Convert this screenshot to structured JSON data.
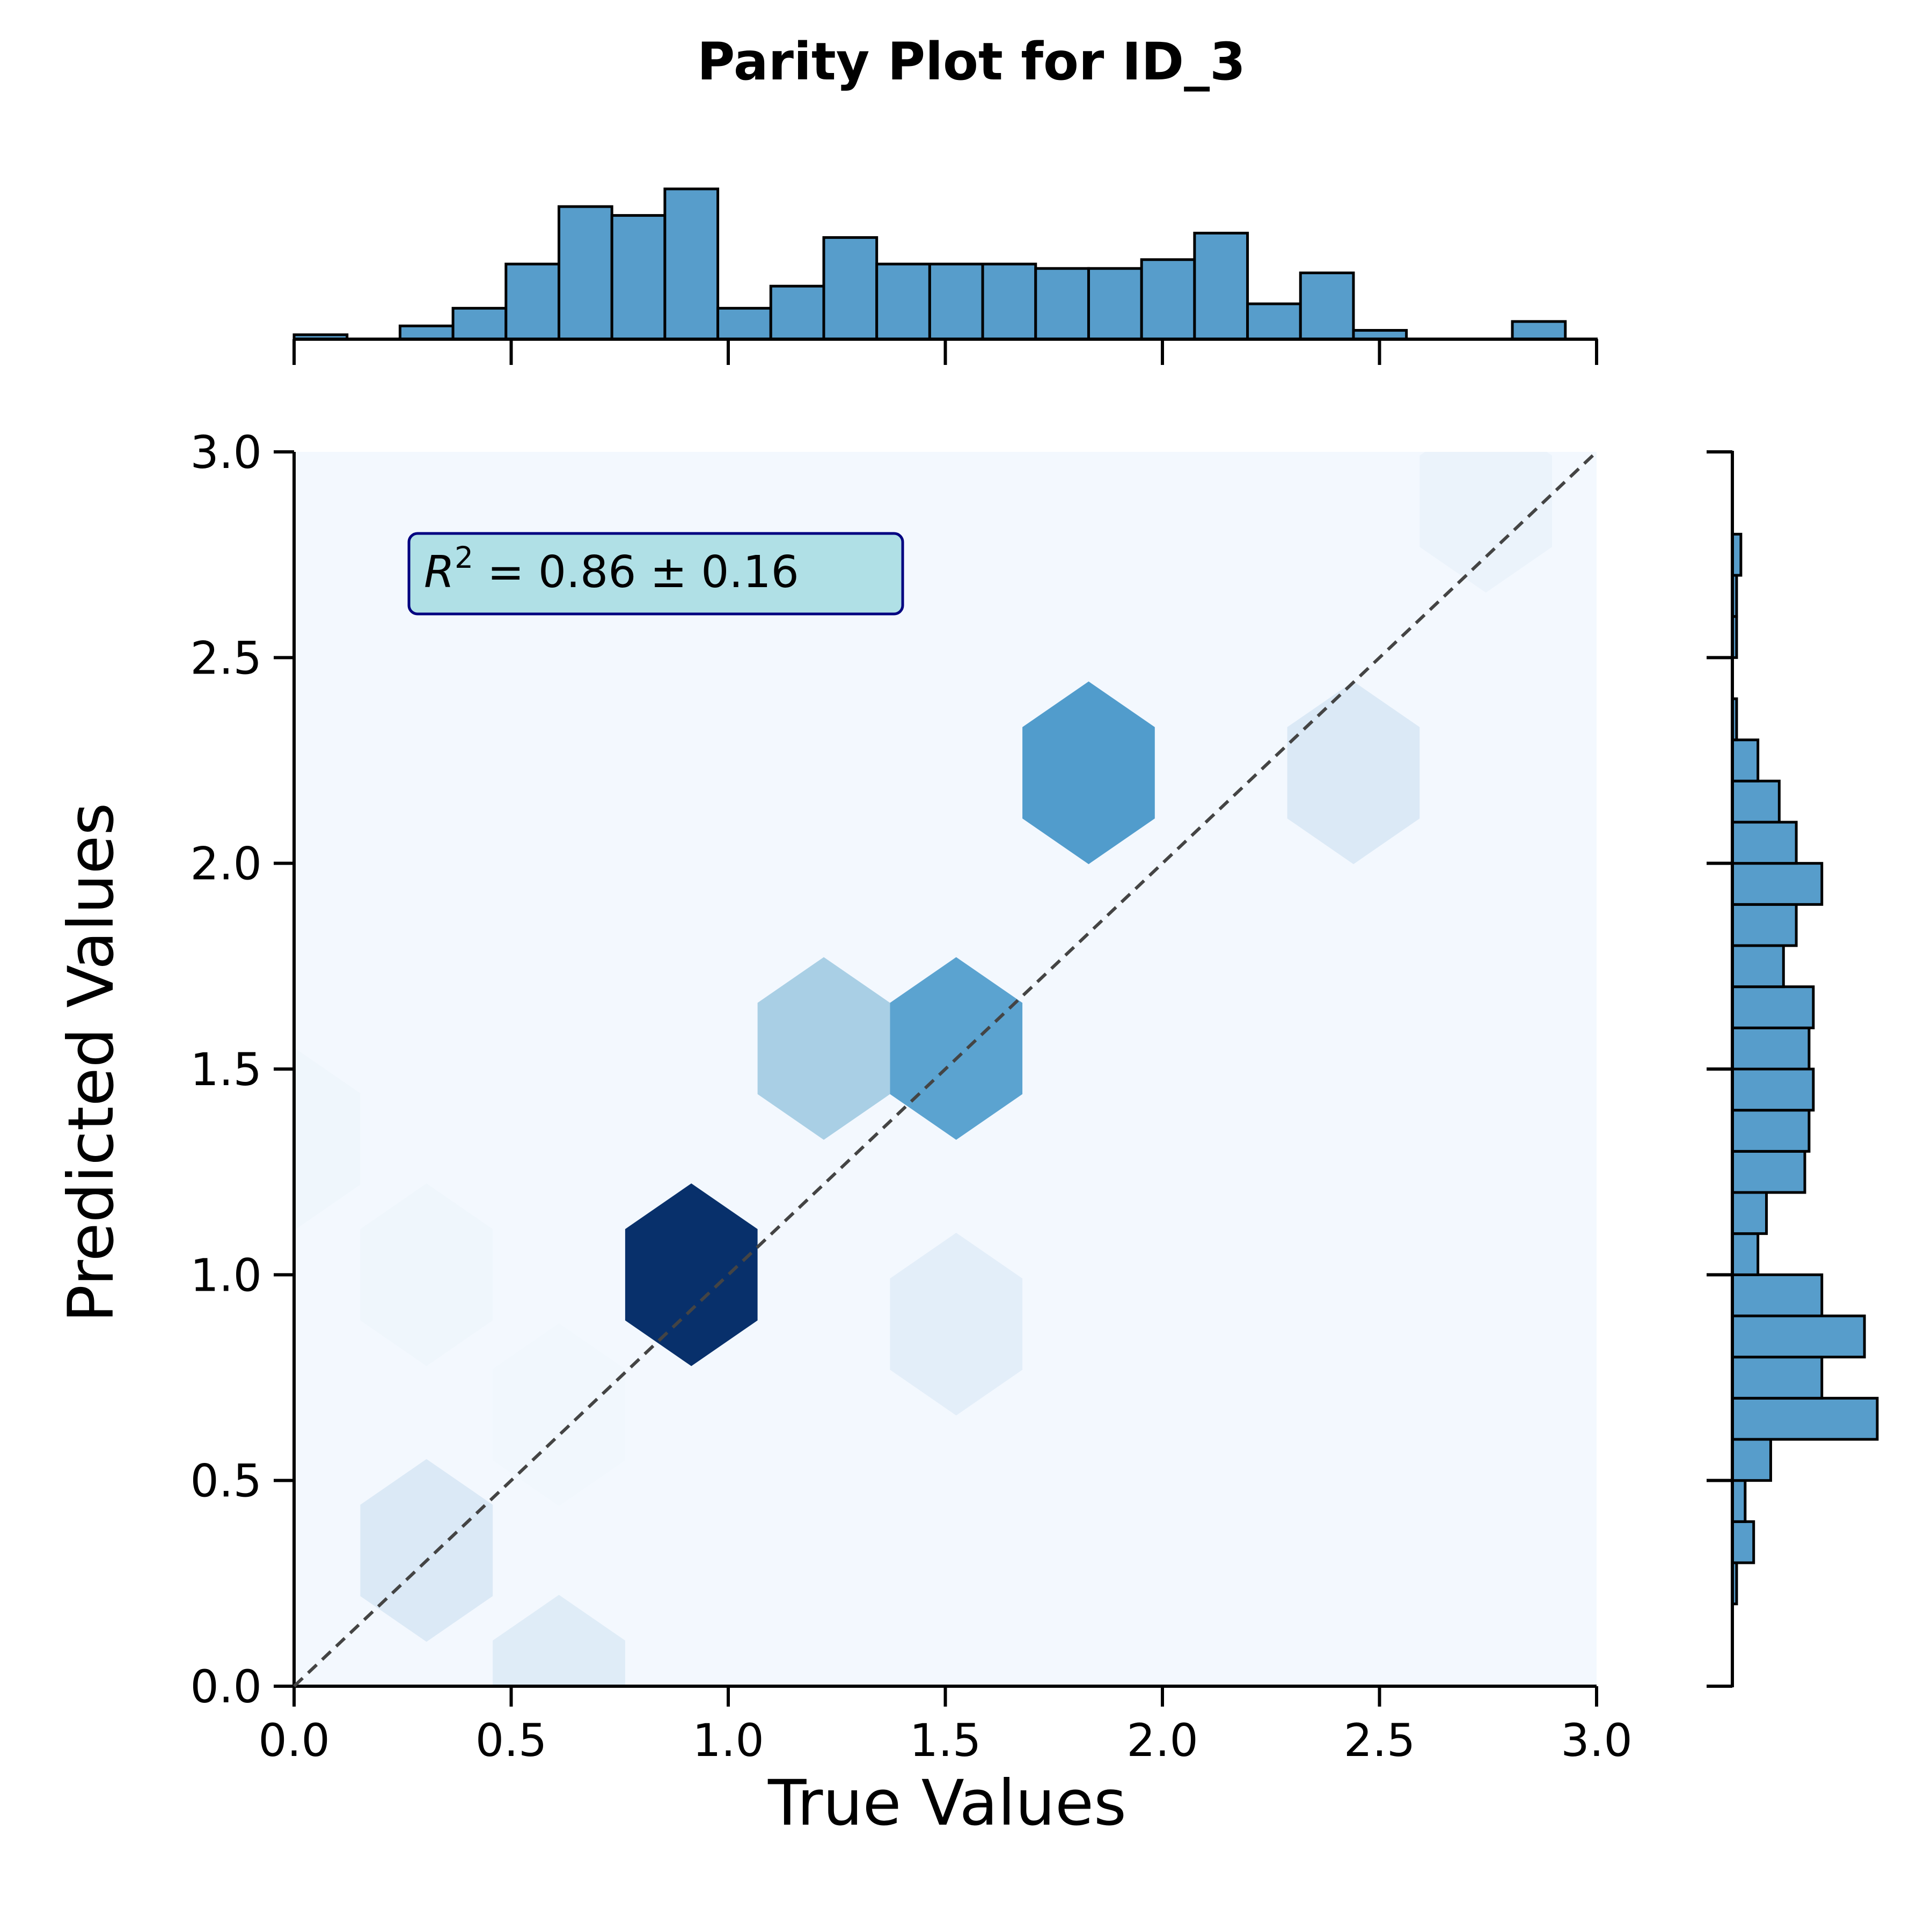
{
  "chart_data": {
    "type": "hexbin",
    "title": "Parity Plot for ID_3",
    "xlabel": "True Values",
    "ylabel": "Predicted Values",
    "xlim": [
      0.0,
      3.0
    ],
    "ylim": [
      0.0,
      3.0
    ],
    "x_ticks": [
      "0.0",
      "0.5",
      "1.0",
      "1.5",
      "2.0",
      "2.5",
      "3.0"
    ],
    "y_ticks": [
      "0.0",
      "0.5",
      "1.0",
      "1.5",
      "2.0",
      "2.5",
      "3.0"
    ],
    "annotation": "R² = 0.86 ± 0.16",
    "annotation_parts": {
      "symbol": "R",
      "superscript": "2",
      "rest": " = 0.86 ± 0.16"
    },
    "reference_line": {
      "type": "diagonal",
      "style": "dashed",
      "color": "#444444"
    },
    "colormap": "Blues",
    "hexbins": [
      {
        "x": 0.0,
        "y": 0.0,
        "count": 0.02
      },
      {
        "x": 0.0,
        "y": 0.66,
        "count": 0.02
      },
      {
        "x": 0.0,
        "y": 1.33,
        "count": 0.04
      },
      {
        "x": 0.0,
        "y": 2.0,
        "count": 0.02
      },
      {
        "x": 0.0,
        "y": 2.66,
        "count": 0.02
      },
      {
        "x": 0.305,
        "y": 0.33,
        "count": 0.14
      },
      {
        "x": 0.305,
        "y": 1.0,
        "count": 0.04
      },
      {
        "x": 0.305,
        "y": 1.66,
        "count": 0.02
      },
      {
        "x": 0.305,
        "y": 2.33,
        "count": 0.02
      },
      {
        "x": 0.305,
        "y": 3.0,
        "count": 0.02
      },
      {
        "x": 0.61,
        "y": 0.0,
        "count": 0.12
      },
      {
        "x": 0.61,
        "y": 0.66,
        "count": 0.03
      },
      {
        "x": 0.61,
        "y": 1.33,
        "count": 0.02
      },
      {
        "x": 0.61,
        "y": 2.0,
        "count": 0.02
      },
      {
        "x": 0.61,
        "y": 2.66,
        "count": 0.02
      },
      {
        "x": 0.915,
        "y": 0.33,
        "count": 0.02
      },
      {
        "x": 0.915,
        "y": 1.0,
        "count": 1.0
      },
      {
        "x": 0.915,
        "y": 1.66,
        "count": 0.02
      },
      {
        "x": 0.915,
        "y": 2.33,
        "count": 0.02
      },
      {
        "x": 0.915,
        "y": 3.0,
        "count": 0.02
      },
      {
        "x": 1.22,
        "y": 0.0,
        "count": 0.02
      },
      {
        "x": 1.22,
        "y": 0.66,
        "count": 0.02
      },
      {
        "x": 1.22,
        "y": 1.33,
        "count": 0.02
      },
      {
        "x": 1.22,
        "y": 2.0,
        "count": 0.02
      },
      {
        "x": 1.22,
        "y": 2.66,
        "count": 0.02
      },
      {
        "x": 1.22,
        "y": 1.55,
        "count": 0.34
      },
      {
        "x": 1.525,
        "y": 0.88,
        "count": 0.1
      },
      {
        "x": 1.525,
        "y": 1.55,
        "count": 0.55
      },
      {
        "x": 1.83,
        "y": 0.55,
        "count": 0.02
      },
      {
        "x": 1.83,
        "y": 2.22,
        "count": 0.58
      },
      {
        "x": 2.135,
        "y": 0.88,
        "count": 0.02
      },
      {
        "x": 2.135,
        "y": 1.55,
        "count": 0.02
      },
      {
        "x": 2.44,
        "y": 2.22,
        "count": 0.14
      },
      {
        "x": 2.745,
        "y": 2.88,
        "count": 0.06
      }
    ],
    "top_histogram": {
      "bin_edges": [
        0.0,
        0.122,
        0.244,
        0.366,
        0.488,
        0.61,
        0.732,
        0.854,
        0.976,
        1.098,
        1.22,
        1.342,
        1.464,
        1.586,
        1.708,
        1.83,
        1.952,
        2.074,
        2.196,
        2.318,
        2.44,
        2.562,
        2.684,
        2.806,
        2.928
      ],
      "counts": [
        1,
        0,
        3,
        7,
        17,
        30,
        28,
        34,
        7,
        12,
        23,
        17,
        17,
        17,
        16,
        16,
        18,
        24,
        8,
        15,
        2,
        0,
        0,
        4
      ]
    },
    "right_histogram": {
      "bin_edges": [
        0.2,
        0.3,
        0.4,
        0.5,
        0.6,
        0.7,
        0.8,
        0.9,
        1.0,
        1.1,
        1.2,
        1.3,
        1.4,
        1.5,
        1.6,
        1.7,
        1.8,
        1.9,
        2.0,
        2.1,
        2.2,
        2.3,
        2.4,
        2.5,
        2.6,
        2.7,
        2.8,
        2.9
      ],
      "counts": [
        1,
        5,
        3,
        9,
        34,
        21,
        31,
        21,
        6,
        8,
        17,
        18,
        19,
        18,
        19,
        12,
        15,
        21,
        15,
        11,
        6,
        1,
        0,
        1,
        1,
        2,
        0
      ]
    },
    "bar_color": "#579dcb"
  }
}
